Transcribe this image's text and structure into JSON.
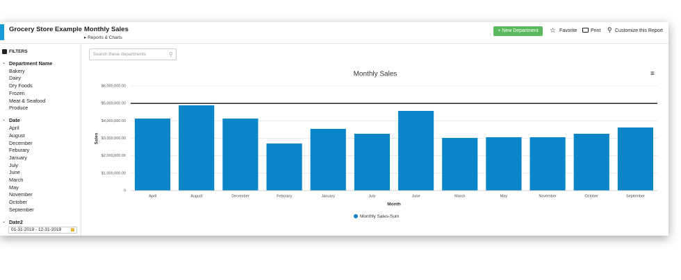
{
  "header": {
    "app_title": "Grocery Store Example",
    "page_title": "Monthly Sales",
    "breadcrumb": "Reports & Charts",
    "button": "+ New Department",
    "actions": [
      "Favorite",
      "Print",
      "Customize this Report"
    ]
  },
  "sidebar": {
    "title": "FILTERS",
    "groups": [
      {
        "title": "Department Name",
        "items": [
          "Bakery",
          "Dairy",
          "Dry Foods",
          "Frozen",
          "Meat & Seafood",
          "Produce"
        ]
      },
      {
        "title": "Date",
        "items": [
          "April",
          "August",
          "December",
          "Feburary",
          "January",
          "July",
          "June",
          "March",
          "May",
          "November",
          "October",
          "September"
        ]
      },
      {
        "title": "Date2",
        "items": []
      }
    ],
    "date_range": "01-31-2019 - 12-31-2019"
  },
  "search": {
    "placeholder": "Search these departments"
  },
  "chart_data": {
    "type": "bar",
    "title": "Monthly Sales",
    "x_label": "Month",
    "y_label": "Sales",
    "categories": [
      "April",
      "August",
      "December",
      "Feburary",
      "January",
      "July",
      "June",
      "March",
      "May",
      "November",
      "October",
      "September"
    ],
    "series": [
      {
        "name": "Monthly Sales-Sum",
        "color": "#0a86c8",
        "values": [
          4130000,
          4890000,
          4130000,
          2700000,
          3540000,
          3260000,
          4570000,
          3020000,
          3060000,
          3060000,
          3260000,
          3620000
        ]
      }
    ],
    "ylim": [
      0,
      6000000
    ],
    "yticks": [
      0,
      {
        "value": 1000000,
        "label": "$1,000,000.00"
      },
      {
        "value": 2000000,
        "label": "$2,000,000.00"
      },
      {
        "value": 3000000,
        "label": "$3,000,000.00"
      },
      {
        "value": 4000000,
        "label": "$4,000,000.00"
      },
      {
        "value": 5000000,
        "label": "$5,000,000.00"
      },
      {
        "value": 6000000,
        "label": "$6,000,000.00"
      }
    ],
    "reference_line": 5000000,
    "grid": true
  }
}
